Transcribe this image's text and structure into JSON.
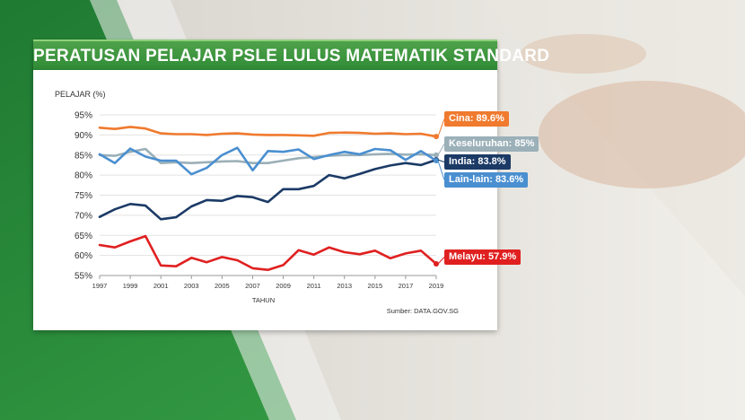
{
  "chart_data": {
    "type": "line",
    "title": "PERATUSAN PELAJAR PSLE LULUS MATEMATIK STANDARD",
    "ylabel": "PELAJAR (%)",
    "xlabel": "TAHUN",
    "source": "Sumber: DATA.GOV.SG",
    "ylim": [
      55,
      95
    ],
    "yticks": [
      "95%",
      "90%",
      "85%",
      "80%",
      "75%",
      "70%",
      "65%",
      "60%",
      "55%"
    ],
    "yticks_values": [
      95,
      90,
      85,
      80,
      75,
      70,
      65,
      60,
      55
    ],
    "xlim": [
      1997,
      2019
    ],
    "xticks": [
      "1997",
      "1999",
      "2001",
      "2003",
      "2005",
      "2007",
      "2009",
      "2011",
      "2013",
      "2015",
      "2017",
      "2019"
    ],
    "xticks_values": [
      1997,
      1999,
      2001,
      2003,
      2005,
      2007,
      2009,
      2011,
      2013,
      2015,
      2017,
      2019
    ],
    "grid": "horizontal",
    "x": [
      1997,
      1998,
      1999,
      2000,
      2001,
      2002,
      2003,
      2004,
      2005,
      2006,
      2007,
      2008,
      2009,
      2010,
      2011,
      2012,
      2013,
      2014,
      2015,
      2016,
      2017,
      2018,
      2019
    ],
    "series": [
      {
        "name": "Cina",
        "color": "#f07a2e",
        "label": "Cina: 89.6%",
        "values": [
          91.8,
          91.5,
          92.0,
          91.6,
          90.4,
          90.2,
          90.2,
          90.0,
          90.3,
          90.4,
          90.1,
          90.0,
          90.0,
          89.9,
          89.8,
          90.5,
          90.6,
          90.5,
          90.3,
          90.4,
          90.2,
          90.3,
          89.6
        ]
      },
      {
        "name": "Keseluruhan",
        "color": "#9bb0b8",
        "label": "Keseluruhan: 85%",
        "values": [
          85.0,
          84.8,
          85.8,
          86.5,
          83.0,
          83.2,
          83.0,
          83.2,
          83.4,
          83.5,
          83.0,
          83.0,
          83.6,
          84.2,
          84.5,
          84.8,
          85.0,
          85.0,
          85.2,
          85.3,
          85.1,
          85.2,
          85.0
        ]
      },
      {
        "name": "India",
        "color": "#1b3a66",
        "label": "India: 83.8%",
        "values": [
          69.6,
          71.5,
          72.8,
          72.4,
          69.0,
          69.5,
          72.2,
          73.8,
          73.6,
          74.8,
          74.5,
          73.3,
          76.5,
          76.5,
          77.3,
          80.0,
          79.2,
          80.3,
          81.5,
          82.4,
          83.0,
          82.5,
          83.8
        ]
      },
      {
        "name": "Lain-lain",
        "color": "#4a8fd0",
        "label": "Lain-lain: 83.6%",
        "values": [
          85.2,
          83.0,
          86.6,
          84.6,
          83.6,
          83.6,
          80.2,
          81.8,
          85.0,
          86.8,
          81.2,
          86.0,
          85.8,
          86.4,
          84.0,
          85.0,
          85.8,
          85.2,
          86.5,
          86.2,
          83.8,
          86.0,
          83.6
        ]
      },
      {
        "name": "Melayu",
        "color": "#e02020",
        "label": "Melayu: 57.9%",
        "values": [
          62.6,
          62.0,
          63.5,
          64.8,
          57.5,
          57.3,
          59.4,
          58.3,
          59.6,
          58.8,
          56.8,
          56.4,
          57.6,
          61.3,
          60.2,
          62.0,
          60.8,
          60.3,
          61.2,
          59.3,
          60.5,
          61.2,
          57.9
        ]
      }
    ]
  }
}
